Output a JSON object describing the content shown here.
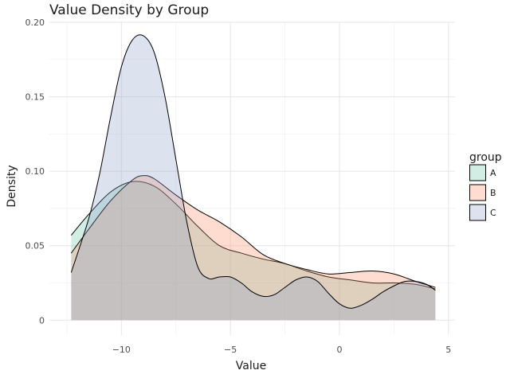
{
  "chart_data": {
    "type": "area",
    "title": "Value Density by Group",
    "xlabel": "Value",
    "ylabel": "Density",
    "xlim": [
      -13.3,
      5.3
    ],
    "ylim": [
      -0.01,
      0.2
    ],
    "x_ticks": [
      -10,
      -5,
      0,
      5
    ],
    "x_tick_labels": [
      "−10",
      "−5",
      "0",
      "5"
    ],
    "y_ticks": [
      0,
      0.05,
      0.1,
      0.15,
      0.2
    ],
    "y_tick_labels": [
      "0",
      "0.05",
      "0.10",
      "0.15",
      "0.20"
    ],
    "grid": true,
    "legend": {
      "title": "group",
      "position": "right"
    },
    "series": [
      {
        "name": "A",
        "color": "#66c2a5",
        "x": [
          -12.3,
          -11.5,
          -10.5,
          -9.5,
          -8.5,
          -7.5,
          -6.5,
          -5.5,
          -4.5,
          -3.5,
          -2.5,
          -1.5,
          -0.5,
          0.5,
          1.5,
          2.5,
          3.5,
          4.4
        ],
        "y": [
          0.057,
          0.071,
          0.086,
          0.093,
          0.09,
          0.078,
          0.063,
          0.05,
          0.045,
          0.041,
          0.038,
          0.033,
          0.029,
          0.027,
          0.025,
          0.025,
          0.024,
          0.021
        ]
      },
      {
        "name": "B",
        "color": "#fc8d62",
        "x": [
          -12.3,
          -11.5,
          -10.5,
          -9.5,
          -9.0,
          -8.5,
          -7.5,
          -6.5,
          -5.5,
          -4.5,
          -3.5,
          -2.5,
          -1.5,
          -0.5,
          0.5,
          1.5,
          2.5,
          3.5,
          4.4
        ],
        "y": [
          0.045,
          0.061,
          0.08,
          0.094,
          0.097,
          0.095,
          0.084,
          0.074,
          0.066,
          0.056,
          0.044,
          0.038,
          0.034,
          0.031,
          0.032,
          0.033,
          0.031,
          0.026,
          0.022
        ]
      },
      {
        "name": "C",
        "color": "#8da0cb",
        "x": [
          -12.3,
          -11.5,
          -11.0,
          -10.5,
          -10.0,
          -9.5,
          -9.0,
          -8.5,
          -8.0,
          -7.5,
          -7.0,
          -6.5,
          -6.0,
          -5.5,
          -5.0,
          -4.5,
          -4.0,
          -3.5,
          -3.0,
          -2.5,
          -2.0,
          -1.5,
          -1.0,
          -0.5,
          0.0,
          0.5,
          1.0,
          1.5,
          2.0,
          2.5,
          3.0,
          3.5,
          4.0,
          4.4
        ],
        "y": [
          0.032,
          0.068,
          0.098,
          0.136,
          0.17,
          0.188,
          0.191,
          0.18,
          0.15,
          0.108,
          0.066,
          0.036,
          0.028,
          0.029,
          0.029,
          0.025,
          0.019,
          0.016,
          0.017,
          0.022,
          0.027,
          0.029,
          0.026,
          0.018,
          0.011,
          0.008,
          0.01,
          0.014,
          0.019,
          0.023,
          0.026,
          0.026,
          0.024,
          0.02
        ]
      }
    ]
  }
}
